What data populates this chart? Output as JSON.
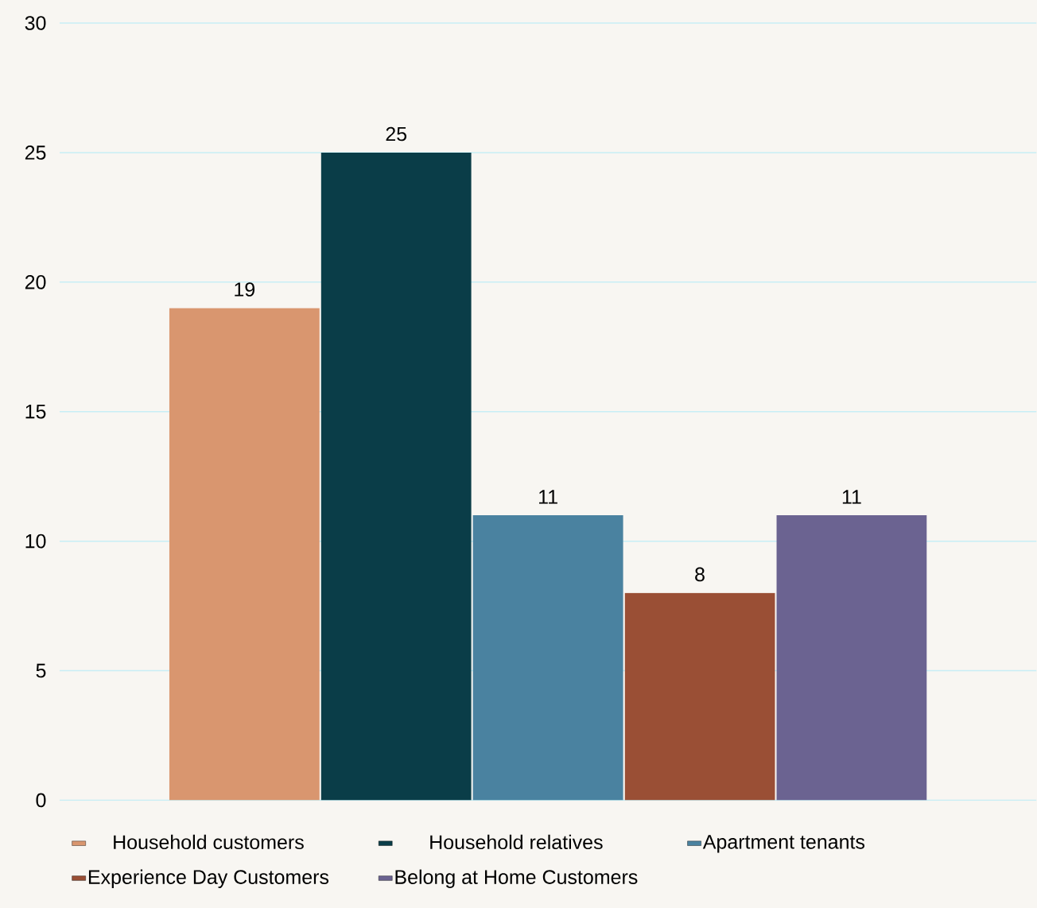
{
  "chart_data": {
    "type": "bar",
    "categories": [
      null
    ],
    "series": [
      {
        "name": "Household customers",
        "color": "#d9966f",
        "values": [
          19
        ]
      },
      {
        "name": "Household relatives",
        "color": "#0a3d48",
        "values": [
          25
        ]
      },
      {
        "name": "Apartment tenants",
        "color": "#4a82a0",
        "values": [
          11
        ]
      },
      {
        "name": "Experience Day Customers",
        "color": "#9a4f35",
        "values": [
          8
        ]
      },
      {
        "name": "Belong at Home Customers",
        "color": "#6b6391",
        "values": [
          11
        ]
      }
    ],
    "ylim": [
      0,
      30
    ],
    "yticks": [
      0,
      5,
      10,
      15,
      20,
      25,
      30
    ],
    "grid": "y",
    "legend": "bottom",
    "data_labels": true
  }
}
